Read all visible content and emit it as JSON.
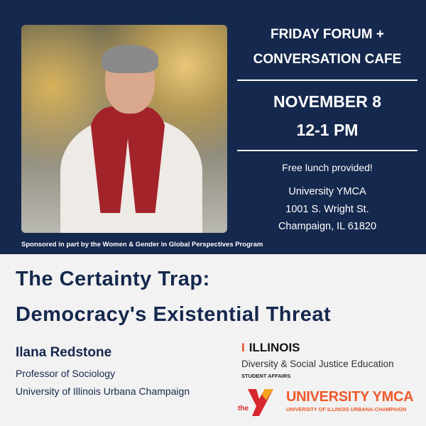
{
  "event": {
    "series_line1": "FRIDAY FORUM +",
    "series_line2": "CONVERSATION CAFE",
    "date": "NOVEMBER 8",
    "time": "12-1 PM",
    "lunch": "Free lunch provided!",
    "venue": "University YMCA",
    "address": "1001 S. Wright St.",
    "city": "Champaign, IL 61820"
  },
  "sponsor": "Sponsored in part by the Women & Gender in Global Perspectives Program",
  "talk": {
    "title_line1": "The Certainty Trap:",
    "title_line2": "Democracy's Existential Threat"
  },
  "speaker": {
    "name": "Ilana Redstone",
    "role": "Professor of Sociology",
    "affiliation": "University of Illinois Urbana Champaign"
  },
  "logos": {
    "illinois": "ILLINOIS",
    "dsje": "Diversity & Social Justice Education",
    "student_affairs": "STUDENT AFFAIRS",
    "ymca_the": "the",
    "ymca": "UNIVERSITY YMCA",
    "ymca_sub": "UNIVERSITY OF ILLINOIS URBANA-CHAMPAIGN"
  },
  "colors": {
    "navy": "#15284d",
    "orange": "#e84a27",
    "ymca_red": "#d7262e"
  }
}
